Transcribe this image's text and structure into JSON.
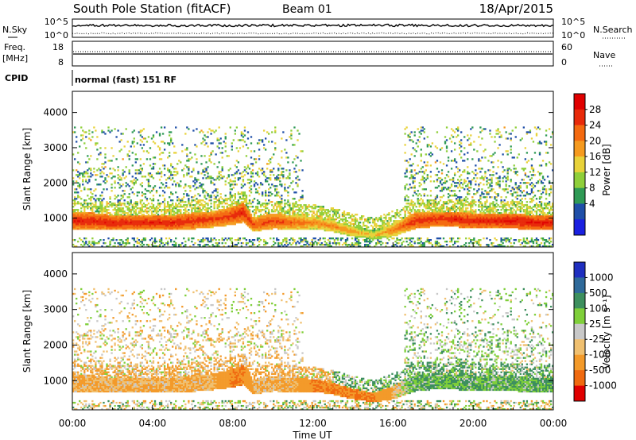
{
  "header": {
    "station": "South Pole Station (fitACF)",
    "beam": "Beam 01",
    "date": "18/Apr/2015"
  },
  "noise_panel": {
    "left_label": "N.Sky",
    "right_label": "N.Search",
    "left_top": "10^5",
    "left_bottom": "10^0",
    "right_top": "10^5",
    "right_bottom": "10^0"
  },
  "freq_panel": {
    "left_label_1": "Freq.",
    "left_label_2": "[MHz]",
    "left_top": "18",
    "left_bottom": "8",
    "right_label": "Nave",
    "right_top": "60",
    "right_bottom": "0"
  },
  "cpid_panel": {
    "label": "CPID",
    "text": "normal (fast) 151 RF"
  },
  "x_axis": {
    "ticks": [
      "00:00",
      "04:00",
      "08:00",
      "12:00",
      "16:00",
      "20:00",
      "00:00"
    ],
    "label": "Time UT"
  },
  "colorbars": {
    "power": {
      "label": "Power [dB]",
      "ticks": [
        "28",
        "24",
        "20",
        "16",
        "12",
        "8",
        "4"
      ],
      "colors": [
        "#1a20e0",
        "#1f4fa8",
        "#2f9a55",
        "#8fcf3a",
        "#e8d23a",
        "#f59a1f",
        "#f46a10",
        "#e82a0a",
        "#e00000"
      ]
    },
    "velocity": {
      "label": "Velocity [m s⁻¹]",
      "ticks": [
        "1000",
        "500",
        "100",
        "25",
        "-25",
        "-100",
        "-500",
        "-1000"
      ],
      "colors": [
        "#1f2fbf",
        "#2f6a9a",
        "#3d8f5e",
        "#7fcf3a",
        "#c8c8c8",
        "#f0c070",
        "#f39a2a",
        "#f06a10",
        "#e00000"
      ]
    }
  },
  "chart_data": [
    {
      "type": "heatmap",
      "title": "",
      "xlabel": "Time UT",
      "ylabel": "Slant Range [km]",
      "x_range_hours": [
        0,
        24
      ],
      "ylim": [
        180,
        4600
      ],
      "yticks": [
        1000,
        2000,
        3000,
        4000
      ],
      "colorbar_label": "Power [dB]",
      "colorbar_range": [
        0,
        32
      ],
      "band_profile": {
        "hours": [
          0,
          1,
          2,
          3,
          4,
          5,
          6,
          7,
          8,
          8.5,
          9,
          10,
          11,
          12,
          13,
          14,
          15,
          16,
          17,
          18,
          19,
          20,
          21,
          22,
          23,
          24
        ],
        "center_km": [
          900,
          900,
          850,
          850,
          850,
          850,
          900,
          950,
          1050,
          1150,
          800,
          900,
          850,
          850,
          750,
          600,
          500,
          650,
          900,
          950,
          950,
          900,
          900,
          900,
          850,
          850
        ],
        "halfwidth_km": [
          230,
          230,
          210,
          210,
          220,
          220,
          230,
          230,
          260,
          280,
          200,
          220,
          200,
          180,
          160,
          150,
          130,
          190,
          230,
          220,
          220,
          220,
          220,
          220,
          200,
          200
        ],
        "peak_power_db": [
          28,
          28,
          28,
          28,
          28,
          28,
          27,
          26,
          27,
          28,
          25,
          26,
          24,
          22,
          22,
          20,
          18,
          22,
          27,
          27,
          28,
          28,
          28,
          29,
          29,
          29
        ],
        "dominant_velocity": [
          -100,
          -100,
          -100,
          -100,
          -100,
          -100,
          -100,
          -100,
          -500,
          -500,
          -100,
          -100,
          -100,
          -500,
          -500,
          -500,
          -500,
          -100,
          100,
          100,
          100,
          100,
          100,
          100,
          100,
          100
        ]
      }
    },
    {
      "type": "heatmap",
      "title": "",
      "xlabel": "Time UT",
      "ylabel": "Slant Range [km]",
      "x_range_hours": [
        0,
        24
      ],
      "ylim": [
        180,
        4600
      ],
      "yticks": [
        1000,
        2000,
        3000,
        4000
      ],
      "colorbar_label": "Velocity [m s⁻¹]",
      "colorbar_levels": [
        -1000,
        -500,
        -100,
        -25,
        25,
        100,
        500,
        1000
      ]
    }
  ]
}
